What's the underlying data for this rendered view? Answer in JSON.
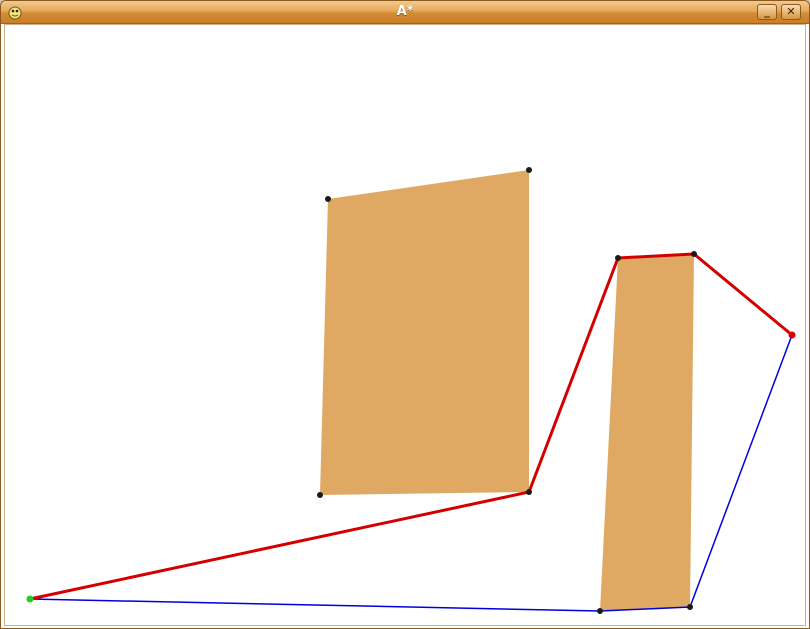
{
  "window": {
    "title": "A*",
    "minimize_glyph": "_",
    "close_glyph": "✕",
    "app_icon": "pygame-snake-icon"
  },
  "colors": {
    "obstacle": "#dfa963",
    "path": "#d40000",
    "search_edge": "#0000dd",
    "vertex": "#1a1a1a",
    "start": "#22cc22",
    "goal": "#dd0000",
    "titlebar": "#e1a050"
  }
}
